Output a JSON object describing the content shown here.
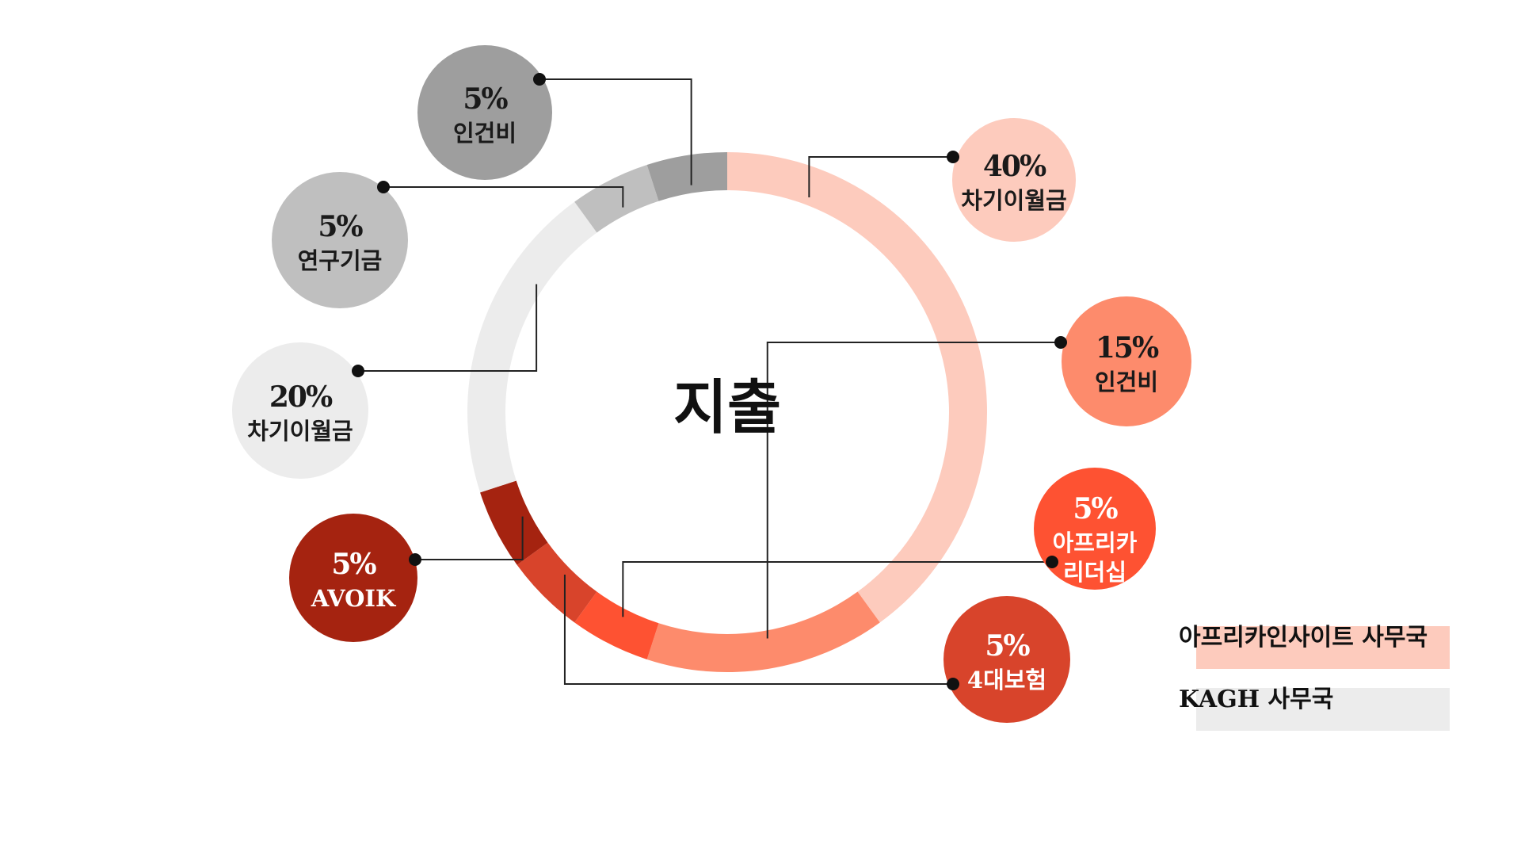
{
  "chart_data": {
    "type": "pie",
    "variant": "donut",
    "center_label": "지출",
    "slices": [
      {
        "id": "s1",
        "value": 40,
        "pct_label": "40%",
        "lines": [
          "차기이월금"
        ],
        "group": "아프리카인사이트 사무국",
        "color": "#fdcbbd",
        "text_color": "#1a1a1a"
      },
      {
        "id": "s2",
        "value": 15,
        "pct_label": "15%",
        "lines": [
          "인건비"
        ],
        "group": "아프리카인사이트 사무국",
        "color": "#fd8b6c",
        "text_color": "#1a1a1a"
      },
      {
        "id": "s3",
        "value": 5,
        "pct_label": "5%",
        "lines": [
          "아프리카",
          "리더십"
        ],
        "group": "아프리카인사이트 사무국",
        "color": "#fe5232",
        "text_color": "#ffffff"
      },
      {
        "id": "s4",
        "value": 5,
        "pct_label": "5%",
        "lines": [
          "4대보험"
        ],
        "group": "아프리카인사이트 사무국",
        "color": "#d8442b",
        "text_color": "#ffffff"
      },
      {
        "id": "s5",
        "value": 5,
        "pct_label": "5%",
        "lines": [
          "AVOIK"
        ],
        "group": "아프리카인사이트 사무국",
        "color": "#a52310",
        "text_color": "#ffffff"
      },
      {
        "id": "s6",
        "value": 20,
        "pct_label": "20%",
        "lines": [
          "차기이월금"
        ],
        "group": "KAGH 사무국",
        "color": "#ececec",
        "text_color": "#1a1a1a"
      },
      {
        "id": "s7",
        "value": 5,
        "pct_label": "5%",
        "lines": [
          "연구기금"
        ],
        "group": "KAGH 사무국",
        "color": "#bfbfbf",
        "text_color": "#1a1a1a"
      },
      {
        "id": "s8",
        "value": 5,
        "pct_label": "5%",
        "lines": [
          "인건비"
        ],
        "group": "KAGH 사무국",
        "color": "#9e9e9e",
        "text_color": "#1a1a1a"
      }
    ],
    "legend": [
      {
        "label": "아프리카인사이트 사무국",
        "color": "#fdcbbd"
      },
      {
        "label": "KAGH 사무국",
        "color": "#ececec"
      }
    ]
  }
}
